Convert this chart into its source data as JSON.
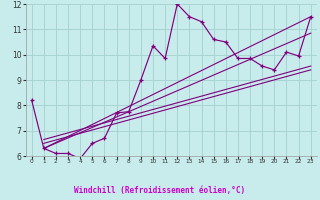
{
  "xlabel": "Windchill (Refroidissement éolien,°C)",
  "x_data": [
    0,
    1,
    2,
    3,
    4,
    5,
    6,
    7,
    8,
    9,
    10,
    11,
    12,
    13,
    14,
    15,
    16,
    17,
    18,
    19,
    20,
    21,
    22,
    23
  ],
  "y_main": [
    8.2,
    6.3,
    6.1,
    6.1,
    5.9,
    6.5,
    6.7,
    7.7,
    7.75,
    9.0,
    10.35,
    9.85,
    12.0,
    11.5,
    11.3,
    10.6,
    10.5,
    9.85,
    9.85,
    9.55,
    9.4,
    10.1,
    9.95,
    11.5
  ],
  "line_color": "#800080",
  "bg_color": "#c8ecec",
  "grid_color": "#a8d4d4",
  "bottom_bar_color": "#4040a0",
  "xlabel_color": "#cc00cc",
  "ylim": [
    6,
    12
  ],
  "xlim": [
    -0.5,
    23.5
  ],
  "yticks": [
    6,
    7,
    8,
    9,
    10,
    11,
    12
  ],
  "xticks": [
    0,
    1,
    2,
    3,
    4,
    5,
    6,
    7,
    8,
    9,
    10,
    11,
    12,
    13,
    14,
    15,
    16,
    17,
    18,
    19,
    20,
    21,
    22,
    23
  ],
  "regression_lines": [
    {
      "x0": 1,
      "y0": 6.3,
      "x1": 23,
      "y1": 11.5
    },
    {
      "x0": 1,
      "y0": 6.3,
      "x1": 23,
      "y1": 10.85
    },
    {
      "x0": 1,
      "y0": 6.5,
      "x1": 23,
      "y1": 9.4
    },
    {
      "x0": 1,
      "y0": 6.65,
      "x1": 23,
      "y1": 9.55
    }
  ]
}
